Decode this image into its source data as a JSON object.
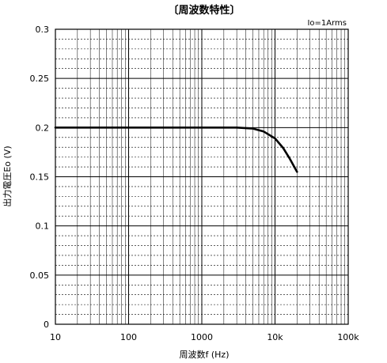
{
  "chart_data": {
    "type": "line",
    "title": "〔周波数特性〕",
    "xlabel": "周波数f (Hz)",
    "ylabel": "出力電圧Eo (V)",
    "annotation": "Io=1Arms",
    "x_scale": "log",
    "xlim": [
      10,
      100000
    ],
    "ylim": [
      0,
      0.3
    ],
    "x_ticks": [
      10,
      100,
      1000,
      10000,
      100000
    ],
    "x_tick_labels": [
      "10",
      "100",
      "1000",
      "10k",
      "100k"
    ],
    "y_ticks": [
      0,
      0.05,
      0.1,
      0.15,
      0.2,
      0.25,
      0.3
    ],
    "y_tick_labels": [
      "0",
      "0.05",
      "0.1",
      "0.15",
      "0.2",
      "0.25",
      "0.3"
    ],
    "grid": true,
    "legend": "none",
    "line_color": "#000000",
    "series": [
      {
        "x": [
          10,
          100,
          1000,
          3000,
          5000,
          7000,
          10000,
          13000,
          16000,
          20000
        ],
        "y": [
          0.2,
          0.2,
          0.2,
          0.2,
          0.199,
          0.196,
          0.189,
          0.179,
          0.168,
          0.155
        ]
      }
    ]
  }
}
